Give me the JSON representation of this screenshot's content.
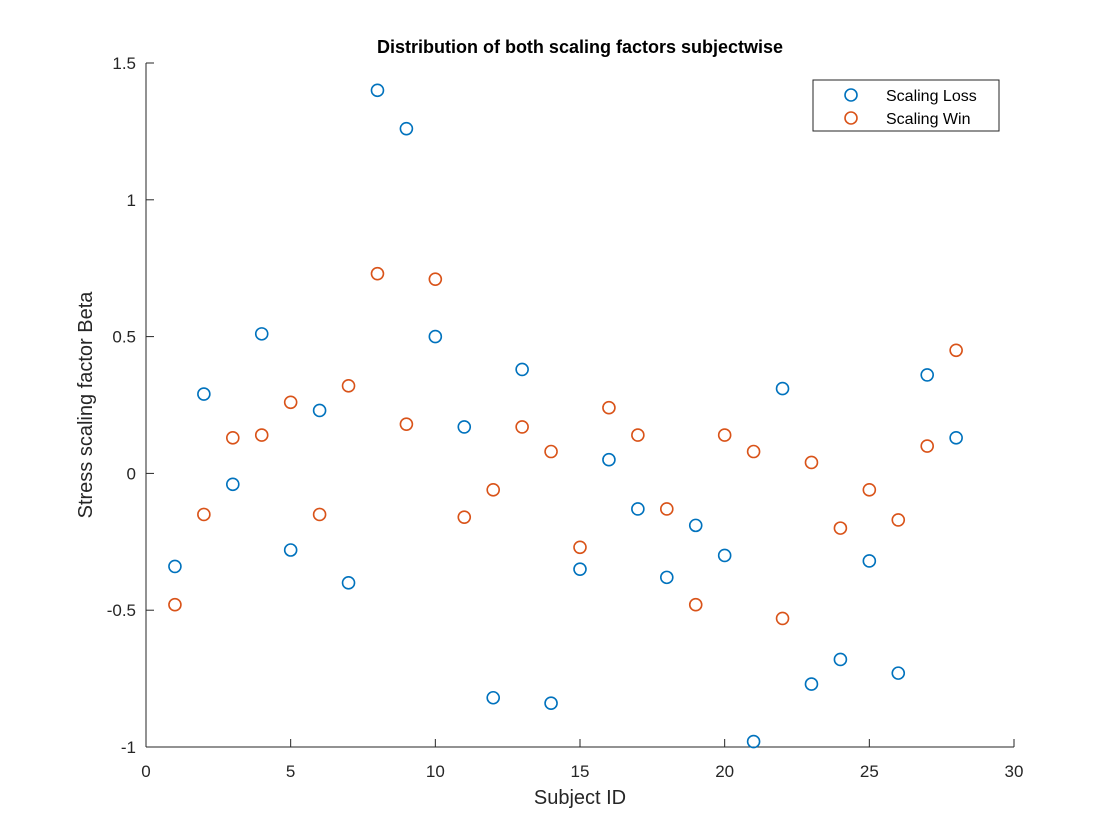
{
  "chart_data": {
    "type": "scatter",
    "title": "Distribution of both scaling factors subjectwise",
    "xlabel": "Subject ID",
    "ylabel": "Stress scaling factor Beta",
    "xlim": [
      0,
      30
    ],
    "ylim": [
      -1,
      1.5
    ],
    "xticks": [
      0,
      5,
      10,
      15,
      20,
      25,
      30
    ],
    "yticks": [
      -1,
      -0.5,
      0,
      0.5,
      1,
      1.5
    ],
    "grid": false,
    "legend_position": "top-right",
    "marker": "open-circle",
    "x": [
      1,
      2,
      3,
      4,
      5,
      6,
      7,
      8,
      9,
      10,
      11,
      12,
      13,
      14,
      15,
      16,
      17,
      18,
      19,
      20,
      21,
      22,
      23,
      24,
      25,
      26,
      27,
      28
    ],
    "series": [
      {
        "name": "Scaling Loss",
        "color": "#0072BD",
        "values": [
          -0.34,
          0.29,
          -0.04,
          0.51,
          -0.28,
          0.23,
          -0.4,
          1.4,
          1.26,
          0.5,
          0.17,
          -0.82,
          0.38,
          -0.84,
          -0.35,
          0.05,
          -0.13,
          -0.38,
          -0.19,
          -0.3,
          -0.98,
          0.31,
          -0.77,
          -0.68,
          -0.32,
          -0.73,
          0.36,
          0.13
        ]
      },
      {
        "name": "Scaling Win",
        "color": "#D95319",
        "values": [
          -0.48,
          -0.15,
          0.13,
          0.14,
          0.26,
          -0.15,
          0.32,
          0.73,
          0.18,
          0.71,
          -0.16,
          -0.06,
          0.17,
          0.08,
          -0.27,
          0.24,
          0.14,
          -0.13,
          -0.48,
          0.14,
          0.08,
          -0.53,
          0.04,
          -0.2,
          -0.06,
          -0.17,
          0.1,
          0.45
        ]
      }
    ]
  }
}
